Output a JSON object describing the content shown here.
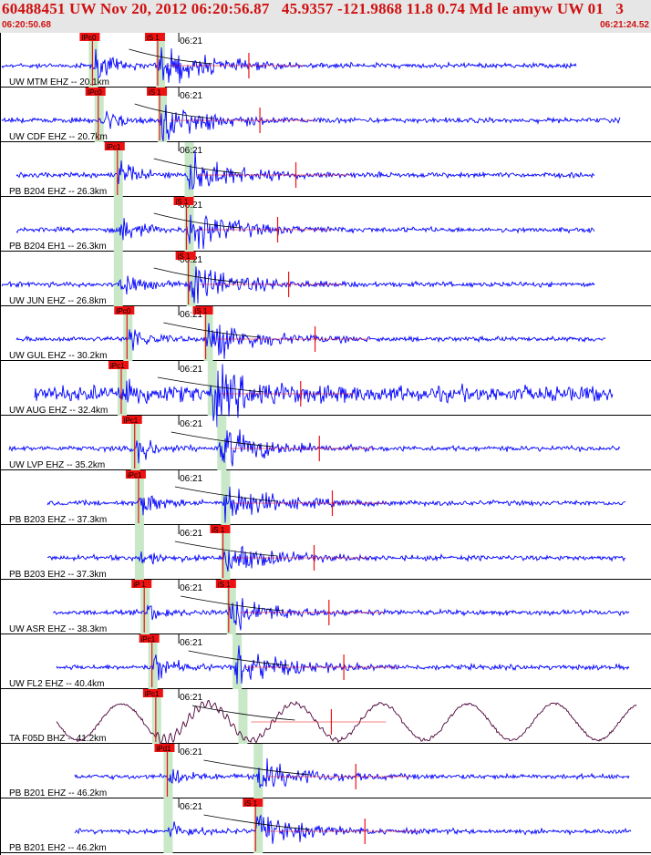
{
  "header": {
    "title": "60488451 UW Nov 20, 2012 06:20:56.87   45.9357 -121.9868 11.8 0.74 Md le amyw UW 01   3",
    "start_time": "06:20:50.68",
    "end_time": "06:21:24.52"
  },
  "colors": {
    "trace": "#0000ff",
    "trace_broadband": "#4a0038",
    "pick": "#ee1111",
    "p_window": "#c8e8c8",
    "header_bg": "#e6e6e6",
    "title": "#d01010"
  },
  "chart_data": {
    "type": "line",
    "title": "60488451 UW Nov 20, 2012 06:20:56.87   45.9357 -121.9868 11.8 0.74 Md le amyw UW 01   3",
    "x_range": [
      "06:20:50.68",
      "06:21:24.52"
    ],
    "minute_tick_label": "06:21",
    "minute_tick_time": "06:21:00",
    "series": [
      {
        "name": "UW MTM EHZ -- 20.1km",
        "picks": [
          "IPc0",
          "iS 1"
        ],
        "p_pick": "06:20:55.5",
        "s_pick": "06:20:58.9",
        "amplitude_class": "high"
      },
      {
        "name": "UW CDF EHZ -- 20.7km",
        "picks": [
          "IPc0",
          "iS 1"
        ],
        "p_pick": "06:20:55.8",
        "s_pick": "06:20:59.0",
        "amplitude_class": "high"
      },
      {
        "name": "PB B204 EHZ -- 26.3km",
        "picks": [
          "iPc1"
        ],
        "p_pick": "06:20:56.8",
        "s_pick": "06:21:00.4",
        "amplitude_class": "high"
      },
      {
        "name": "PB B204 EH1 -- 26.3km",
        "picks": [
          "iS 1"
        ],
        "p_pick": "06:20:56.8",
        "s_pick": "06:21:00.4",
        "amplitude_class": "high"
      },
      {
        "name": "UW JUN EHZ -- 26.8km",
        "picks": [
          "iS 1"
        ],
        "p_pick": "06:20:56.8",
        "s_pick": "06:21:00.5",
        "amplitude_class": "high"
      },
      {
        "name": "UW GUL EHZ -- 30.2km",
        "picks": [
          "IPc0",
          "iS 1"
        ],
        "p_pick": "06:20:57.3",
        "s_pick": "06:21:01.4",
        "amplitude_class": "high"
      },
      {
        "name": "UW AUG EHZ -- 32.4km",
        "picks": [
          "iPc1"
        ],
        "p_pick": "06:20:57.0",
        "s_pick": "06:21:01.6",
        "amplitude_class": "noisy"
      },
      {
        "name": "UW LVP EHZ -- 35.2km",
        "picks": [
          "iPc1"
        ],
        "p_pick": "06:20:57.7",
        "s_pick": "06:21:02.1",
        "amplitude_class": "high"
      },
      {
        "name": "PB B203 EHZ -- 37.3km",
        "picks": [
          "iPc1"
        ],
        "p_pick": "06:20:57.9",
        "s_pick": "06:21:02.3",
        "amplitude_class": "high"
      },
      {
        "name": "PB B203 EH2 -- 37.3km",
        "picks": [
          "iS 1"
        ],
        "p_pick": "06:20:57.9",
        "s_pick": "06:21:02.3",
        "amplitude_class": "medium"
      },
      {
        "name": "UW ASR EHZ -- 38.3km",
        "picks": [
          "iP 1",
          "iS 1"
        ],
        "p_pick": "06:20:58.2",
        "s_pick": "06:21:02.6",
        "amplitude_class": "medium"
      },
      {
        "name": "UW FL2 EHZ -- 40.4km",
        "picks": [
          "iPc1"
        ],
        "p_pick": "06:20:58.6",
        "s_pick": "06:21:02.9",
        "amplitude_class": "high"
      },
      {
        "name": "TA F05D BHZ -- 41.2km",
        "picks": [
          "iPc1"
        ],
        "p_pick": "06:20:58.8",
        "s_pick": "06:21:03.2",
        "amplitude_class": "broadband"
      },
      {
        "name": "PB B201 EHZ -- 46.2km",
        "picks": [
          "iPd1"
        ],
        "p_pick": "06:20:59.4",
        "s_pick": "06:21:04.0",
        "amplitude_class": "medium"
      },
      {
        "name": "PB B201 EH2 -- 46.2km",
        "picks": [
          "iS 1"
        ],
        "p_pick": "06:20:59.4",
        "s_pick": "06:21:04.0",
        "amplitude_class": "medium"
      }
    ]
  }
}
